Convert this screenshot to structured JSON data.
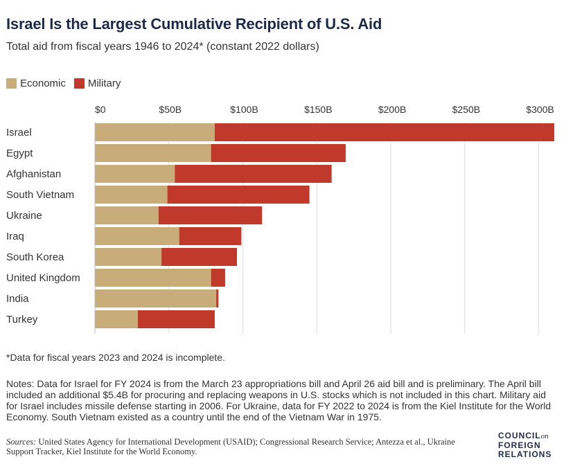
{
  "title": "Israel Is the Largest Cumulative Recipient of U.S. Aid",
  "subtitle": "Total aid from fiscal years 1946 to 2024* (constant 2022 dollars)",
  "legend": [
    {
      "label": "Economic",
      "color": "#c8ad7a"
    },
    {
      "label": "Military",
      "color": "#c0392b"
    }
  ],
  "chart_data": {
    "type": "bar",
    "orientation": "horizontal",
    "stacked": true,
    "categories": [
      "Israel",
      "Egypt",
      "Afghanistan",
      "South Vietnam",
      "Ukraine",
      "Iraq",
      "South Korea",
      "United Kingdom",
      "India",
      "Turkey"
    ],
    "series": [
      {
        "name": "Economic",
        "color": "#c8ad7a",
        "values": [
          81,
          78.5,
          54,
          49,
          43,
          57,
          45,
          78.5,
          82,
          29
        ]
      },
      {
        "name": "Military",
        "color": "#c0392b",
        "values": [
          229.5,
          91,
          106,
          96,
          70,
          42,
          51,
          9.5,
          1.5,
          52
        ]
      }
    ],
    "xticks": [
      "$0",
      "$50B",
      "$100B",
      "$150B",
      "$200B",
      "$250B",
      "$300B"
    ],
    "tick_values": [
      0,
      50,
      100,
      150,
      200,
      250,
      300
    ],
    "xlim": [
      0,
      310.5
    ],
    "grid": true,
    "legend_position": "top-left"
  },
  "footnote": "*Data for fiscal years 2023 and 2024 is incomplete.",
  "notes": "Notes: Data for Israel for FY 2024 is from the March 23 appropriations bill and April 26 aid bill and is preliminary. The April bill included an additional $5.4B for procuring and replacing weapons in U.S. stocks which is not included in this chart. Military aid for Israel includes missile defense starting in 2006. For Ukraine, data for FY 2022 to 2024 is from the Kiel Institute for the World Economy. South Vietnam existed as a country until the end of the Vietnam War in 1975.",
  "sources": {
    "label": "Sources:",
    "text": "United States Agency for International Development (USAID); Congressional Research Service; Antezza et al., Ukraine Support Tracker, Kiel Institute for the World Economy."
  },
  "logo": {
    "line1": "COUNCIL",
    "on": "on",
    "line2": "FOREIGN",
    "line3": "RELATIONS"
  }
}
